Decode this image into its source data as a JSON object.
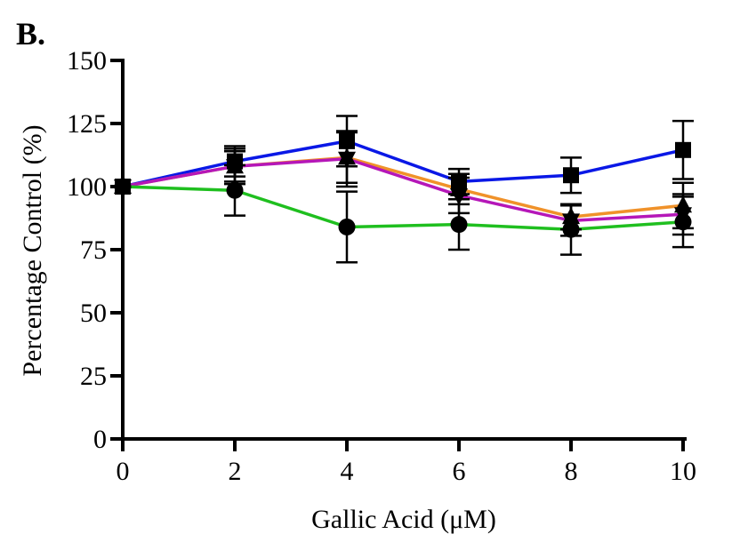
{
  "panel_label": "B.",
  "chart_data": {
    "type": "line",
    "xlabel": "Gallic Acid (μM)",
    "ylabel": "Percentage Control (%)",
    "x": [
      0,
      2,
      4,
      6,
      8,
      10
    ],
    "xlim": [
      0,
      10
    ],
    "ylim": [
      0,
      150
    ],
    "xticks": [
      0,
      2,
      4,
      6,
      8,
      10
    ],
    "yticks": [
      0,
      25,
      50,
      75,
      100,
      125,
      150
    ],
    "grid": false,
    "series": [
      {
        "color": "#0a18e6",
        "marker": "square",
        "values": [
          100,
          110,
          118,
          102,
          104.5,
          114.5
        ],
        "err": [
          0,
          6,
          10,
          5,
          7,
          11.5
        ]
      },
      {
        "color": "#f0922a",
        "marker": "triangle-up",
        "values": [
          100,
          108,
          111.5,
          99,
          88,
          92.5
        ],
        "err": [
          0,
          7,
          10,
          6,
          5,
          9
        ]
      },
      {
        "color": "#b517b8",
        "marker": "triangle-down",
        "values": [
          100,
          108,
          111,
          96.5,
          86.5,
          89
        ],
        "err": [
          0,
          6,
          11,
          7,
          6,
          8
        ]
      },
      {
        "color": "#1fbf1f",
        "marker": "circle",
        "values": [
          100,
          98.5,
          84,
          85,
          83,
          86
        ],
        "err": [
          0,
          10,
          14,
          10,
          10,
          10
        ]
      }
    ]
  }
}
